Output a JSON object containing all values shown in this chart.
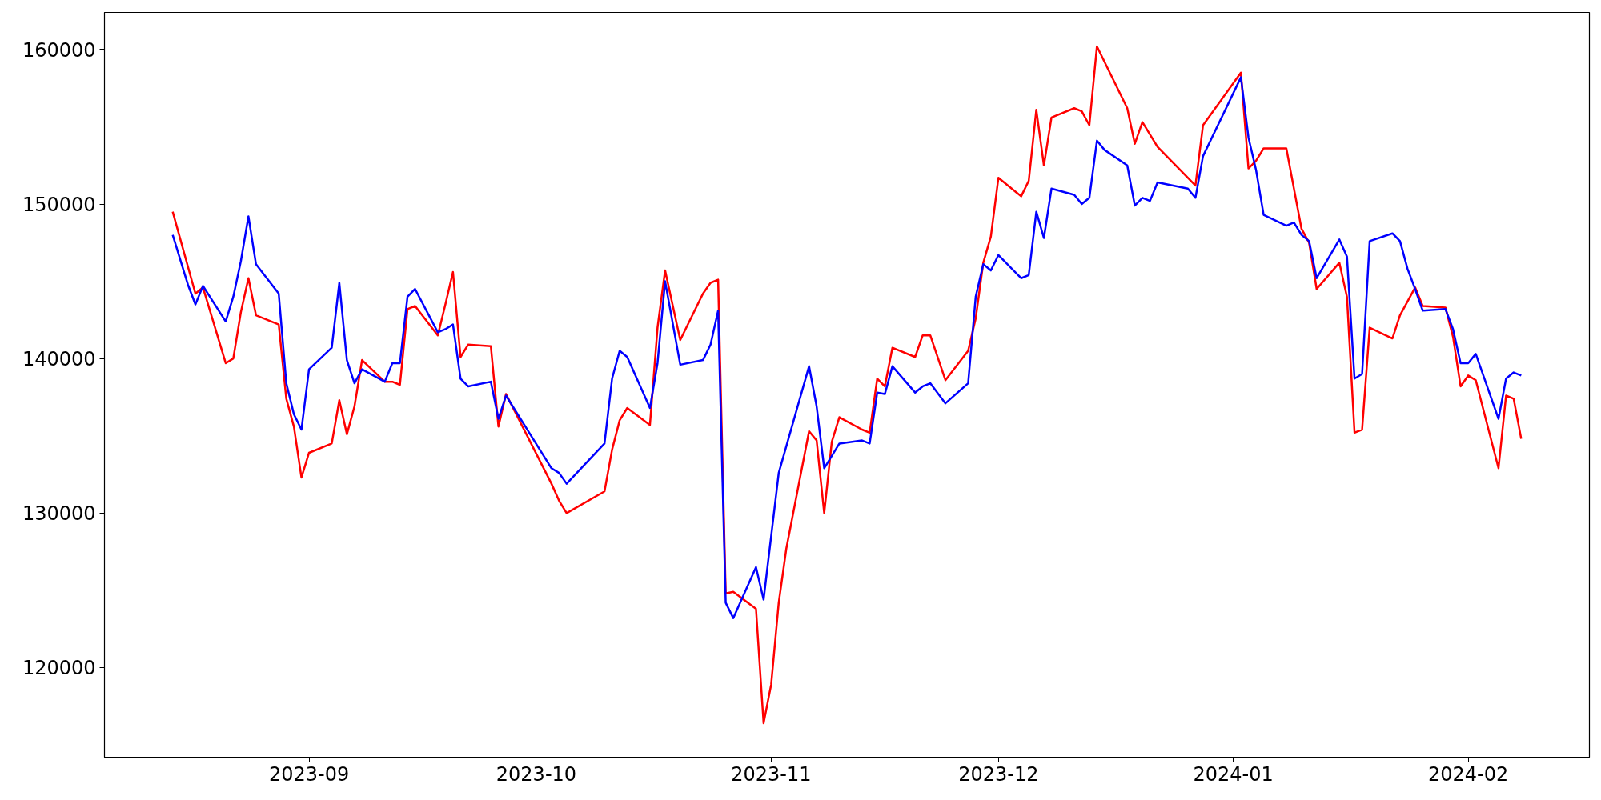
{
  "chart_data": {
    "type": "line",
    "xlim": [
      "2023-08-05",
      "2024-02-17"
    ],
    "ylim": [
      114200,
      162400
    ],
    "xticks": [
      {
        "value": "2023-09-01",
        "label": "2023-09"
      },
      {
        "value": "2023-10-01",
        "label": "2023-10"
      },
      {
        "value": "2023-11-01",
        "label": "2023-11"
      },
      {
        "value": "2023-12-01",
        "label": "2023-12"
      },
      {
        "value": "2024-01-01",
        "label": "2024-01"
      },
      {
        "value": "2024-02-01",
        "label": "2024-02"
      }
    ],
    "yticks": [
      120000,
      130000,
      140000,
      150000,
      160000
    ],
    "grid": false,
    "line_style": "solid",
    "marker": "none",
    "series": [
      {
        "color": "#ff0000",
        "x": [
          "2023-08-14",
          "2023-08-17",
          "2023-08-18",
          "2023-08-21",
          "2023-08-22",
          "2023-08-23",
          "2023-08-24",
          "2023-08-25",
          "2023-08-28",
          "2023-08-29",
          "2023-08-30",
          "2023-08-31",
          "2023-09-01",
          "2023-09-04",
          "2023-09-05",
          "2023-09-06",
          "2023-09-07",
          "2023-09-08",
          "2023-09-11",
          "2023-09-12",
          "2023-09-13",
          "2023-09-14",
          "2023-09-15",
          "2023-09-18",
          "2023-09-19",
          "2023-09-20",
          "2023-09-21",
          "2023-09-22",
          "2023-09-25",
          "2023-09-26",
          "2023-09-27",
          "2023-10-03",
          "2023-10-04",
          "2023-10-05",
          "2023-10-10",
          "2023-10-11",
          "2023-10-12",
          "2023-10-13",
          "2023-10-16",
          "2023-10-17",
          "2023-10-18",
          "2023-10-20",
          "2023-10-23",
          "2023-10-24",
          "2023-10-25",
          "2023-10-26",
          "2023-10-27",
          "2023-10-30",
          "2023-10-31",
          "2023-11-01",
          "2023-11-02",
          "2023-11-03",
          "2023-11-06",
          "2023-11-07",
          "2023-11-08",
          "2023-11-09",
          "2023-11-10",
          "2023-11-13",
          "2023-11-14",
          "2023-11-15",
          "2023-11-16",
          "2023-11-17",
          "2023-11-20",
          "2023-11-21",
          "2023-11-22",
          "2023-11-24",
          "2023-11-27",
          "2023-11-28",
          "2023-11-29",
          "2023-11-30",
          "2023-12-01",
          "2023-12-04",
          "2023-12-05",
          "2023-12-06",
          "2023-12-07",
          "2023-12-08",
          "2023-12-11",
          "2023-12-12",
          "2023-12-13",
          "2023-12-14",
          "2023-12-18",
          "2023-12-19",
          "2023-12-20",
          "2023-12-21",
          "2023-12-22",
          "2023-12-27",
          "2023-12-28",
          "2024-01-02",
          "2024-01-03",
          "2024-01-04",
          "2024-01-05",
          "2024-01-08",
          "2024-01-10",
          "2024-01-11",
          "2024-01-12",
          "2024-01-15",
          "2024-01-16",
          "2024-01-17",
          "2024-01-18",
          "2024-01-19",
          "2024-01-22",
          "2024-01-23",
          "2024-01-25",
          "2024-01-26",
          "2024-01-29",
          "2024-01-30",
          "2024-01-31",
          "2024-02-01",
          "2024-02-02",
          "2024-02-05",
          "2024-02-06",
          "2024-02-07",
          "2024-02-08"
        ],
        "values": [
          149500,
          144200,
          144600,
          139700,
          140000,
          143000,
          145200,
          142800,
          142200,
          137400,
          135600,
          132300,
          133900,
          134500,
          137300,
          135100,
          136900,
          139900,
          138500,
          138500,
          138300,
          143200,
          143400,
          141500,
          143500,
          145600,
          140100,
          140900,
          140800,
          135600,
          137700,
          131900,
          130800,
          130000,
          131400,
          134100,
          136000,
          136800,
          135700,
          142000,
          145700,
          141200,
          144200,
          144900,
          145100,
          124800,
          124900,
          123800,
          116400,
          118900,
          124200,
          127700,
          135300,
          134700,
          130000,
          134600,
          136200,
          135400,
          135200,
          138700,
          138200,
          140700,
          140100,
          141500,
          141500,
          138600,
          140500,
          142600,
          146200,
          147900,
          151700,
          150500,
          151500,
          156100,
          152500,
          155600,
          156200,
          156000,
          155100,
          160200,
          156200,
          153900,
          155300,
          154500,
          153700,
          151200,
          155100,
          158500,
          152300,
          152800,
          153600,
          153600,
          148400,
          147500,
          144500,
          146200,
          144000,
          135200,
          135400,
          142000,
          141300,
          142800,
          144600,
          143400,
          143300,
          141400,
          138200,
          138900,
          138600,
          132900,
          137600,
          137400,
          134800
        ]
      },
      {
        "color": "#0000ff",
        "x": [
          "2023-08-14",
          "2023-08-16",
          "2023-08-17",
          "2023-08-18",
          "2023-08-21",
          "2023-08-22",
          "2023-08-23",
          "2023-08-24",
          "2023-08-25",
          "2023-08-28",
          "2023-08-29",
          "2023-08-30",
          "2023-08-31",
          "2023-09-01",
          "2023-09-04",
          "2023-09-05",
          "2023-09-06",
          "2023-09-07",
          "2023-09-08",
          "2023-09-11",
          "2023-09-12",
          "2023-09-13",
          "2023-09-14",
          "2023-09-15",
          "2023-09-18",
          "2023-09-19",
          "2023-09-20",
          "2023-09-21",
          "2023-09-22",
          "2023-09-25",
          "2023-09-26",
          "2023-09-27",
          "2023-10-03",
          "2023-10-04",
          "2023-10-05",
          "2023-10-10",
          "2023-10-11",
          "2023-10-12",
          "2023-10-13",
          "2023-10-16",
          "2023-10-17",
          "2023-10-18",
          "2023-10-20",
          "2023-10-23",
          "2023-10-24",
          "2023-10-25",
          "2023-10-26",
          "2023-10-27",
          "2023-10-30",
          "2023-10-31",
          "2023-11-02",
          "2023-11-06",
          "2023-11-07",
          "2023-11-08",
          "2023-11-09",
          "2023-11-10",
          "2023-11-13",
          "2023-11-14",
          "2023-11-15",
          "2023-11-16",
          "2023-11-17",
          "2023-11-20",
          "2023-11-21",
          "2023-11-22",
          "2023-11-24",
          "2023-11-27",
          "2023-11-28",
          "2023-11-29",
          "2023-11-30",
          "2023-12-01",
          "2023-12-04",
          "2023-12-05",
          "2023-12-06",
          "2023-12-07",
          "2023-12-08",
          "2023-12-11",
          "2023-12-12",
          "2023-12-13",
          "2023-12-14",
          "2023-12-15",
          "2023-12-18",
          "2023-12-19",
          "2023-12-20",
          "2023-12-21",
          "2023-12-22",
          "2023-12-26",
          "2023-12-27",
          "2023-12-28",
          "2024-01-02",
          "2024-01-03",
          "2024-01-04",
          "2024-01-05",
          "2024-01-08",
          "2024-01-09",
          "2024-01-10",
          "2024-01-11",
          "2024-01-12",
          "2024-01-15",
          "2024-01-16",
          "2024-01-17",
          "2024-01-18",
          "2024-01-19",
          "2024-01-22",
          "2024-01-23",
          "2024-01-24",
          "2024-01-25",
          "2024-01-26",
          "2024-01-29",
          "2024-01-30",
          "2024-01-31",
          "2024-02-01",
          "2024-02-02",
          "2024-02-05",
          "2024-02-06",
          "2024-02-07",
          "2024-02-08"
        ],
        "values": [
          148000,
          144800,
          143500,
          144700,
          142400,
          144000,
          146300,
          149200,
          146100,
          144200,
          138400,
          136400,
          135400,
          139300,
          140700,
          144900,
          139900,
          138400,
          139300,
          138500,
          139700,
          139700,
          144000,
          144500,
          141700,
          141900,
          142200,
          138700,
          138200,
          138500,
          136100,
          137600,
          132900,
          132600,
          131900,
          134500,
          138700,
          140500,
          140100,
          136800,
          139700,
          145000,
          139600,
          139900,
          140900,
          143100,
          124200,
          123200,
          126500,
          124400,
          132600,
          139500,
          136900,
          132900,
          133700,
          134500,
          134700,
          134500,
          137800,
          137700,
          139500,
          137800,
          138200,
          138400,
          137100,
          138400,
          144000,
          146100,
          145700,
          146700,
          145200,
          145400,
          149500,
          147800,
          151000,
          150600,
          150000,
          150400,
          154100,
          153500,
          152500,
          149900,
          150400,
          150200,
          151400,
          151000,
          150400,
          153100,
          158200,
          154300,
          152200,
          149300,
          148600,
          148800,
          148000,
          147600,
          145200,
          147700,
          146600,
          138700,
          139000,
          147600,
          148100,
          147600,
          145800,
          144500,
          143100,
          143200,
          141900,
          139700,
          139700,
          140300,
          136100,
          138700,
          139100,
          138900
        ]
      }
    ]
  }
}
